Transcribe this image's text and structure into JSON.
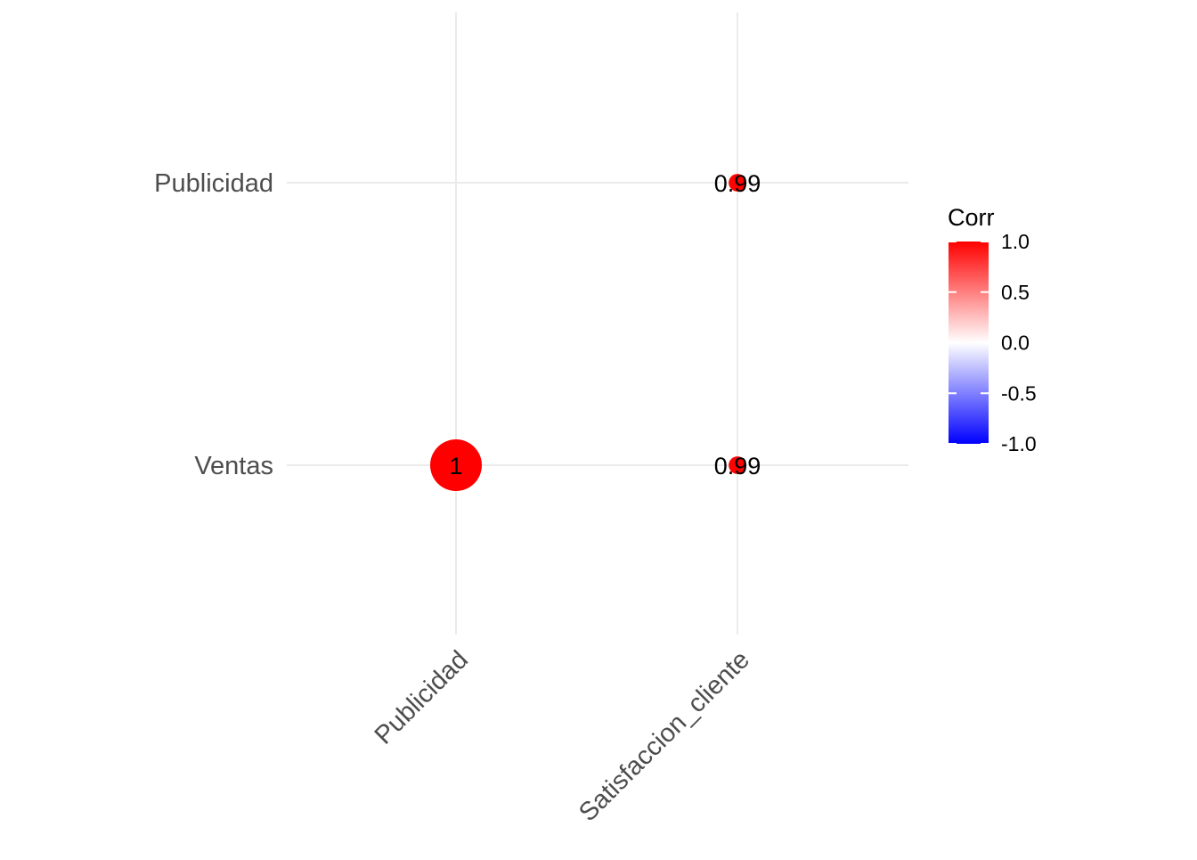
{
  "chart_data": {
    "type": "scatter",
    "subtype": "correlation-matrix-circles",
    "x_categories": [
      "Publicidad",
      "Satisfaccion_cliente"
    ],
    "y_categories": [
      "Ventas",
      "Publicidad"
    ],
    "cells": [
      {
        "x": "Publicidad",
        "y": "Ventas",
        "value": 1,
        "label": "1"
      },
      {
        "x": "Satisfaccion_cliente",
        "y": "Ventas",
        "value": 0.99,
        "label": "0.99"
      },
      {
        "x": "Satisfaccion_cliente",
        "y": "Publicidad",
        "value": 0.99,
        "label": "0.99"
      }
    ],
    "legend": {
      "title": "Corr",
      "position": "right",
      "ticks": [
        "1.0",
        "0.5",
        "0.0",
        "-0.5",
        "-1.0"
      ],
      "tick_values": [
        1.0,
        0.5,
        0.0,
        -0.5,
        -1.0
      ],
      "limits": [
        -1,
        1
      ],
      "colors": {
        "low": "#0000FF",
        "mid": "#FFFFFF",
        "high": "#FF0000"
      }
    },
    "x_tick_angle_deg": 45,
    "grid": true
  }
}
